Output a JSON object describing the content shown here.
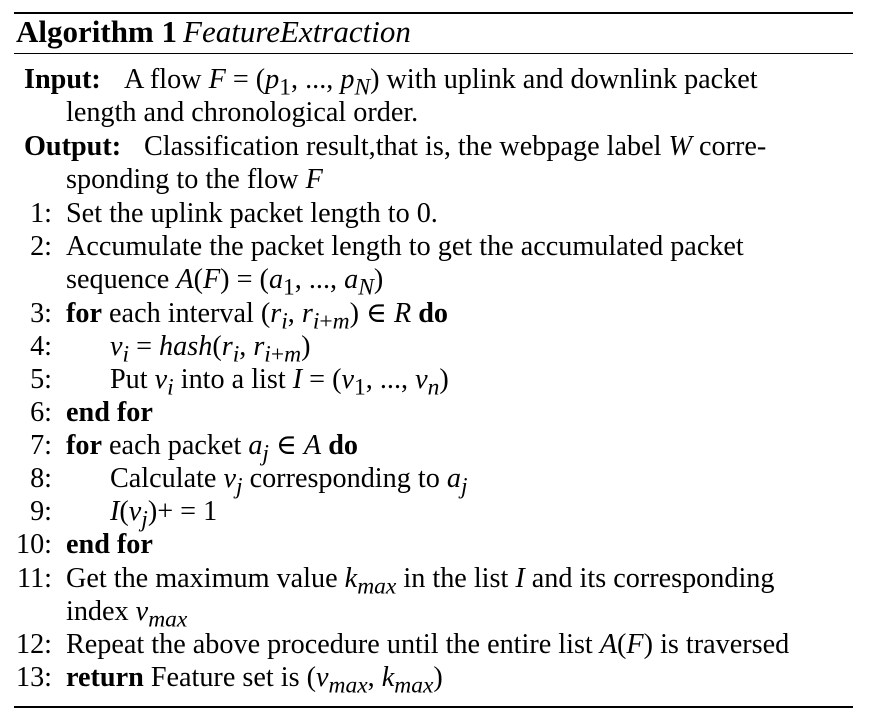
{
  "algorithm": {
    "label": "Algorithm 1",
    "name": "FeatureExtraction"
  },
  "input": {
    "label": "Input:",
    "line1": "A flow F = (p1, ..., pN) with uplink and downlink packet",
    "line2": "length and chronological order."
  },
  "output": {
    "label": "Output:",
    "line1": "Classification result,that is, the webpage label W corre-",
    "line2": "sponding to the flow F"
  },
  "steps": [
    {
      "num": "1:",
      "text": "Set the uplink packet length to 0."
    },
    {
      "num": "2:",
      "text": "Accumulate the packet length to get the accumulated packet",
      "text2": "sequence A(F) = (a1, ..., aN)"
    },
    {
      "num": "3:",
      "kw": "for",
      "text": "each interval (ri, ri+m) ∈ R",
      "kw2": "do"
    },
    {
      "num": "4:",
      "text": "vi = hash(ri, ri+m)"
    },
    {
      "num": "5:",
      "text": "Put vi into a list I = (v1, ..., vn)"
    },
    {
      "num": "6:",
      "kw": "end for"
    },
    {
      "num": "7:",
      "kw": "for",
      "text": "each packet aj ∈ A",
      "kw2": "do"
    },
    {
      "num": "8:",
      "text": "Calculate vj corresponding to aj"
    },
    {
      "num": "9:",
      "text": "I(vj)+ = 1"
    },
    {
      "num": "10:",
      "kw": "end for"
    },
    {
      "num": "11:",
      "text": "Get the maximum value kmax in the list I and its corresponding",
      "text2": "index vmax"
    },
    {
      "num": "12:",
      "text": "Repeat the above procedure until the entire list A(F) is traversed"
    },
    {
      "num": "13:",
      "kw": "return",
      "text": "Feature set is (vmax, kmax)"
    }
  ]
}
